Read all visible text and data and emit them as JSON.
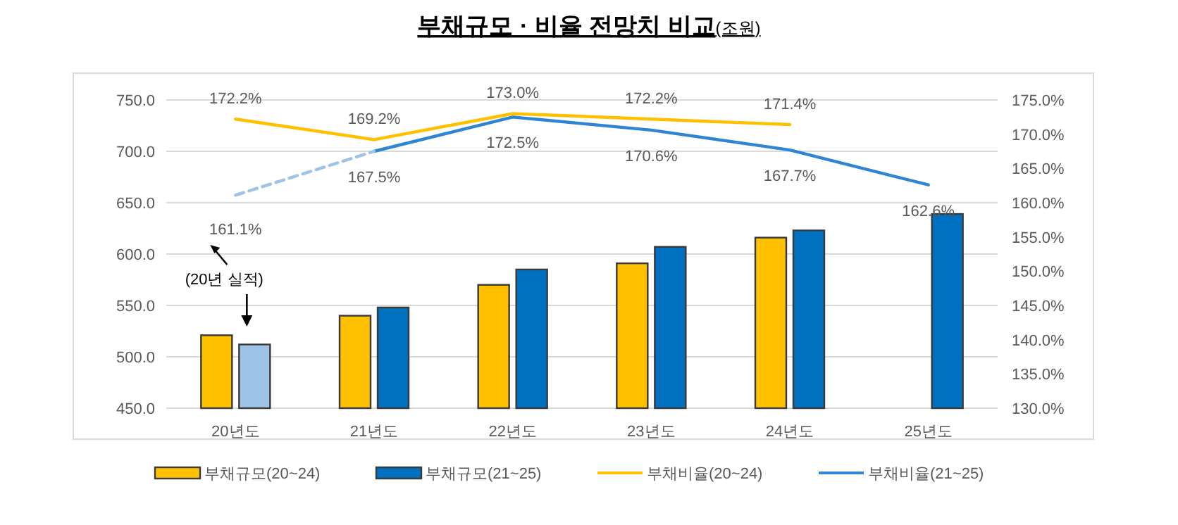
{
  "chart_data": {
    "type": "bar",
    "title": "부채규모 · 비율 전망치 비교",
    "subtitle": "(조원)",
    "categories": [
      "20년도",
      "21년도",
      "22년도",
      "23년도",
      "24년도",
      "25년도"
    ],
    "series": [
      {
        "name": "부채규모(20~24)",
        "color": "#ffc000",
        "values": [
          521,
          540,
          570,
          591,
          616,
          null
        ]
      },
      {
        "name": "부채규모(21~25)",
        "color": "#0070c0",
        "colors": [
          "#9dc3e6",
          "#0070c0",
          "#0070c0",
          "#0070c0",
          "#0070c0",
          "#0070c0"
        ],
        "values": [
          512,
          548,
          585,
          607,
          623,
          639
        ]
      },
      {
        "name": "부채비율(20~24)",
        "type": "line",
        "axis": "y2",
        "color": "#ffc000",
        "values": [
          172.2,
          169.2,
          173.0,
          172.2,
          171.4,
          null
        ],
        "value_labels": [
          "172.2%",
          "169.2%",
          "173.0%",
          "172.2%",
          "171.4%",
          null
        ]
      },
      {
        "name": "부채비율(21~25)",
        "type": "line",
        "axis": "y2",
        "color": "#2e86d3",
        "values": [
          null,
          167.5,
          172.5,
          170.6,
          167.7,
          162.6
        ],
        "value_labels": [
          null,
          "167.5%",
          "172.5%",
          "170.6%",
          "167.7%",
          "162.6%"
        ]
      },
      {
        "type": "line",
        "axis": "y2",
        "color": "#9dc3e6",
        "line_style": "dashed",
        "values": [
          161.1,
          167.5,
          null,
          null,
          null,
          null
        ],
        "value_labels": [
          "161.1%",
          null,
          null,
          null,
          null,
          null
        ]
      }
    ],
    "ylim": [
      450,
      750
    ],
    "yticks": [
      {
        "value": 450,
        "label": "450.0"
      },
      {
        "value": 500,
        "label": "500.0"
      },
      {
        "value": 550,
        "label": "550.0"
      },
      {
        "value": 600,
        "label": "600.0"
      },
      {
        "value": 650,
        "label": "650.0"
      },
      {
        "value": 700,
        "label": "700.0"
      },
      {
        "value": 750,
        "label": "750.0"
      }
    ],
    "y2lim": [
      130,
      175
    ],
    "y2ticks": [
      {
        "value": 130,
        "label": "130.0%"
      },
      {
        "value": 135,
        "label": "135.0%"
      },
      {
        "value": 140,
        "label": "140.0%"
      },
      {
        "value": 145,
        "label": "145.0%"
      },
      {
        "value": 150,
        "label": "150.0%"
      },
      {
        "value": 155,
        "label": "155.0%"
      },
      {
        "value": 160,
        "label": "160.0%"
      },
      {
        "value": 165,
        "label": "165.0%"
      },
      {
        "value": 170,
        "label": "170.0%"
      },
      {
        "value": 175,
        "label": "175.0%"
      }
    ],
    "grid": "y",
    "legend": "bottom",
    "annotations": [
      "(20년 실적)"
    ]
  }
}
